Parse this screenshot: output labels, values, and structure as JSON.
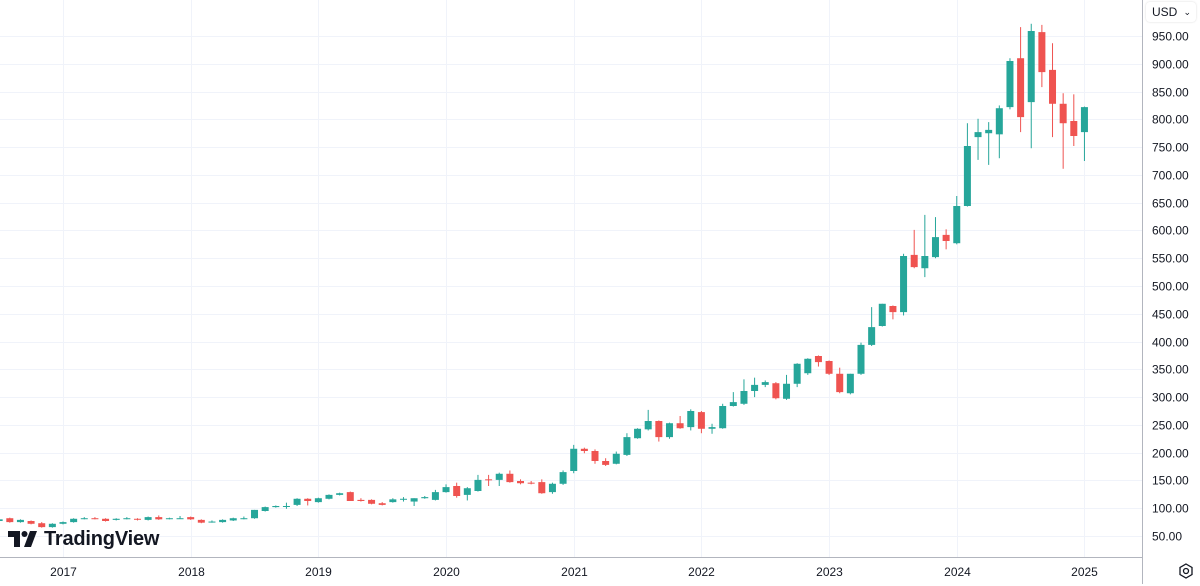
{
  "header": {
    "currency": "USD",
    "currency_chevron_icon": "chevron-down-icon"
  },
  "footer": {
    "settings_icon": "gear-icon"
  },
  "branding": {
    "logo_text": "TradingView"
  },
  "colors": {
    "up": "#26a69a",
    "down": "#ef5350",
    "grid": "#f0f3fa",
    "axis_border": "#b2b5be",
    "text": "#131722"
  },
  "chart_data": {
    "type": "candlestick",
    "interval": "monthly",
    "grid": true,
    "ylim": [
      10,
      1015
    ],
    "yticks": [
      "50.00",
      "100.00",
      "150.00",
      "200.00",
      "250.00",
      "300.00",
      "350.00",
      "400.00",
      "450.00",
      "500.00",
      "550.00",
      "600.00",
      "650.00",
      "700.00",
      "750.00",
      "800.00",
      "850.00",
      "900.00",
      "950.00"
    ],
    "xticks": [
      "2017",
      "2018",
      "2019",
      "2020",
      "2021",
      "2022",
      "2023",
      "2024",
      "2025"
    ],
    "columns": [
      "date",
      "open",
      "high",
      "low",
      "close"
    ],
    "candles": [
      [
        "2016-07",
        77,
        81,
        76,
        80
      ],
      [
        "2016-08",
        82,
        83,
        74,
        75
      ],
      [
        "2016-09",
        75,
        80,
        74,
        79
      ],
      [
        "2016-10",
        77,
        78,
        71,
        72
      ],
      [
        "2016-11",
        73,
        75,
        65,
        66
      ],
      [
        "2016-12",
        66,
        73,
        65,
        72
      ],
      [
        "2017-01",
        72,
        76,
        71,
        75
      ],
      [
        "2017-02",
        75,
        82,
        74,
        81
      ],
      [
        "2017-03",
        81,
        84,
        80,
        82
      ],
      [
        "2017-04",
        82,
        84,
        80,
        81
      ],
      [
        "2017-05",
        81,
        82,
        76,
        77
      ],
      [
        "2017-06",
        79,
        82,
        78,
        81
      ],
      [
        "2017-07",
        81,
        84,
        80,
        82
      ],
      [
        "2017-08",
        81,
        82,
        78,
        80
      ],
      [
        "2017-09",
        79,
        85,
        78,
        84
      ],
      [
        "2017-10",
        84,
        87,
        79,
        80
      ],
      [
        "2017-11",
        81,
        83,
        80,
        82
      ],
      [
        "2017-12",
        82,
        86,
        81,
        82
      ],
      [
        "2018-01",
        84,
        85,
        79,
        80
      ],
      [
        "2018-02",
        79,
        80,
        73,
        74
      ],
      [
        "2018-03",
        75,
        78,
        74,
        76
      ],
      [
        "2018-04",
        75,
        80,
        74,
        79
      ],
      [
        "2018-05",
        78,
        83,
        77,
        82
      ],
      [
        "2018-06",
        81,
        85,
        80,
        82
      ],
      [
        "2018-07",
        82,
        97,
        81,
        97
      ],
      [
        "2018-08",
        95,
        103,
        94,
        102
      ],
      [
        "2018-09",
        102,
        105,
        101,
        104
      ],
      [
        "2018-10",
        103,
        110,
        99,
        104
      ],
      [
        "2018-11",
        106,
        118,
        104,
        117
      ],
      [
        "2018-12",
        117,
        118,
        105,
        113
      ],
      [
        "2019-01",
        111,
        119,
        110,
        118
      ],
      [
        "2019-02",
        117,
        125,
        116,
        124
      ],
      [
        "2019-03",
        124,
        128,
        123,
        127
      ],
      [
        "2019-04",
        129,
        130,
        113,
        113
      ],
      [
        "2019-05",
        115,
        118,
        112,
        113
      ],
      [
        "2019-06",
        115,
        116,
        107,
        108
      ],
      [
        "2019-07",
        109,
        111,
        105,
        106
      ],
      [
        "2019-08",
        111,
        118,
        110,
        116
      ],
      [
        "2019-09",
        116,
        120,
        112,
        117
      ],
      [
        "2019-10",
        112,
        118,
        104,
        118
      ],
      [
        "2019-11",
        118,
        122,
        117,
        120
      ],
      [
        "2019-12",
        115,
        133,
        114,
        129
      ],
      [
        "2020-01",
        129,
        143,
        128,
        138
      ],
      [
        "2020-02",
        140,
        146,
        119,
        122
      ],
      [
        "2020-03",
        124,
        138,
        114,
        136
      ],
      [
        "2020-04",
        131,
        160,
        130,
        151
      ],
      [
        "2020-05",
        152,
        160,
        140,
        151
      ],
      [
        "2020-06",
        151,
        164,
        140,
        162
      ],
      [
        "2020-07",
        162,
        168,
        146,
        147
      ],
      [
        "2020-08",
        149,
        152,
        143,
        145
      ],
      [
        "2020-09",
        146,
        149,
        143,
        145
      ],
      [
        "2020-10",
        147,
        152,
        126,
        127
      ],
      [
        "2020-11",
        129,
        146,
        126,
        144
      ],
      [
        "2020-12",
        144,
        168,
        142,
        165
      ],
      [
        "2021-01",
        167,
        214,
        163,
        207
      ],
      [
        "2021-02",
        207,
        209,
        199,
        203
      ],
      [
        "2021-03",
        203,
        206,
        180,
        185
      ],
      [
        "2021-04",
        185,
        190,
        176,
        178
      ],
      [
        "2021-05",
        180,
        202,
        179,
        198
      ],
      [
        "2021-06",
        196,
        235,
        194,
        228
      ],
      [
        "2021-07",
        226,
        244,
        225,
        243
      ],
      [
        "2021-08",
        242,
        277,
        240,
        257
      ],
      [
        "2021-09",
        257,
        258,
        220,
        228
      ],
      [
        "2021-10",
        228,
        254,
        225,
        253
      ],
      [
        "2021-11",
        253,
        266,
        243,
        244
      ],
      [
        "2021-12",
        246,
        278,
        240,
        275
      ],
      [
        "2022-01",
        273,
        275,
        235,
        243
      ],
      [
        "2022-02",
        243,
        252,
        234,
        246
      ],
      [
        "2022-03",
        244,
        288,
        243,
        284
      ],
      [
        "2022-04",
        284,
        309,
        283,
        291
      ],
      [
        "2022-05",
        288,
        332,
        286,
        311
      ],
      [
        "2022-06",
        311,
        335,
        300,
        322
      ],
      [
        "2022-07",
        322,
        330,
        318,
        327
      ],
      [
        "2022-08",
        325,
        327,
        296,
        298
      ],
      [
        "2022-09",
        297,
        340,
        295,
        324
      ],
      [
        "2022-10",
        324,
        361,
        318,
        360
      ],
      [
        "2022-11",
        343,
        370,
        340,
        369
      ],
      [
        "2022-12",
        374,
        375,
        355,
        363
      ],
      [
        "2023-01",
        365,
        366,
        340,
        342
      ],
      [
        "2023-02",
        342,
        353,
        307,
        309
      ],
      [
        "2023-03",
        307,
        342,
        305,
        342
      ],
      [
        "2023-04",
        342,
        398,
        340,
        394
      ],
      [
        "2023-05",
        394,
        462,
        392,
        426
      ],
      [
        "2023-06",
        428,
        468,
        427,
        468
      ],
      [
        "2023-07",
        464,
        465,
        440,
        453
      ],
      [
        "2023-08",
        453,
        558,
        447,
        554
      ],
      [
        "2023-09",
        556,
        601,
        532,
        534
      ],
      [
        "2023-10",
        532,
        628,
        516,
        554
      ],
      [
        "2023-11",
        552,
        624,
        550,
        588
      ],
      [
        "2023-12",
        592,
        602,
        566,
        581
      ],
      [
        "2024-01",
        577,
        662,
        575,
        644
      ],
      [
        "2024-02",
        644,
        793,
        643,
        752
      ],
      [
        "2024-03",
        768,
        801,
        727,
        777
      ],
      [
        "2024-04",
        775,
        795,
        718,
        781
      ],
      [
        "2024-05",
        773,
        825,
        730,
        820
      ],
      [
        "2024-06",
        822,
        910,
        818,
        905
      ],
      [
        "2024-07",
        910,
        966,
        777,
        804
      ],
      [
        "2024-08",
        831,
        972,
        748,
        959
      ],
      [
        "2024-09",
        957,
        970,
        858,
        885
      ],
      [
        "2024-10",
        889,
        937,
        768,
        828
      ],
      [
        "2024-11",
        828,
        847,
        711,
        793
      ],
      [
        "2024-12",
        797,
        845,
        752,
        770
      ],
      [
        "2025-01",
        777,
        823,
        725,
        822
      ]
    ]
  }
}
